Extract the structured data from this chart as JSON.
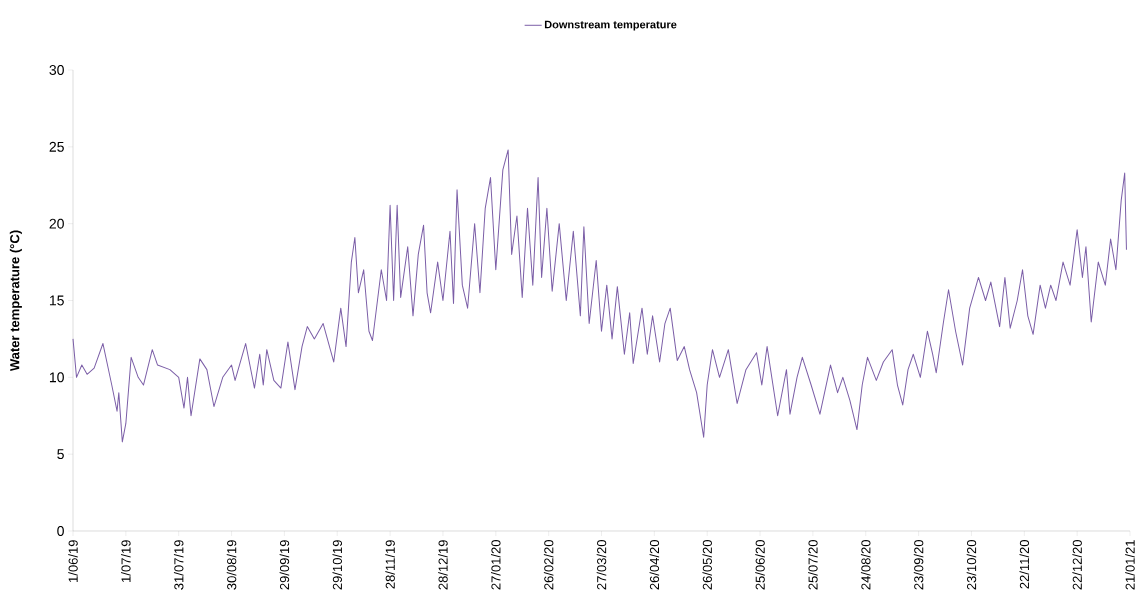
{
  "chart_data": {
    "type": "line",
    "ylabel": "Water temperature (°C)",
    "x": [
      "2019-06-01",
      "2019-06-03",
      "2019-06-06",
      "2019-06-09",
      "2019-06-13",
      "2019-06-18",
      "2019-06-23",
      "2019-06-26",
      "2019-06-27",
      "2019-06-29",
      "2019-07-01",
      "2019-07-04",
      "2019-07-08",
      "2019-07-11",
      "2019-07-16",
      "2019-07-19",
      "2019-07-26",
      "2019-07-31",
      "2019-08-03",
      "2019-08-05",
      "2019-08-07",
      "2019-08-12",
      "2019-08-16",
      "2019-08-20",
      "2019-08-25",
      "2019-08-30",
      "2019-09-01",
      "2019-09-07",
      "2019-09-12",
      "2019-09-15",
      "2019-09-17",
      "2019-09-19",
      "2019-09-23",
      "2019-09-27",
      "2019-10-01",
      "2019-10-05",
      "2019-10-09",
      "2019-10-12",
      "2019-10-16",
      "2019-10-21",
      "2019-10-27",
      "2019-10-31",
      "2019-11-03",
      "2019-11-06",
      "2019-11-08",
      "2019-11-10",
      "2019-11-13",
      "2019-11-16",
      "2019-11-18",
      "2019-11-23",
      "2019-11-26",
      "2019-11-28",
      "2019-11-30",
      "2019-12-02",
      "2019-12-04",
      "2019-12-08",
      "2019-12-11",
      "2019-12-14",
      "2019-12-17",
      "2019-12-19",
      "2019-12-21",
      "2019-12-25",
      "2019-12-28",
      "2020-01-01",
      "2020-01-03",
      "2020-01-05",
      "2020-01-08",
      "2020-01-11",
      "2020-01-15",
      "2020-01-18",
      "2020-01-21",
      "2020-01-24",
      "2020-01-27",
      "2020-01-31",
      "2020-02-03",
      "2020-02-05",
      "2020-02-08",
      "2020-02-11",
      "2020-02-14",
      "2020-02-17",
      "2020-02-20",
      "2020-02-22",
      "2020-02-25",
      "2020-02-28",
      "2020-03-03",
      "2020-03-07",
      "2020-03-11",
      "2020-03-15",
      "2020-03-17",
      "2020-03-20",
      "2020-03-24",
      "2020-03-27",
      "2020-03-30",
      "2020-04-02",
      "2020-04-05",
      "2020-04-09",
      "2020-04-12",
      "2020-04-14",
      "2020-04-19",
      "2020-04-22",
      "2020-04-25",
      "2020-04-29",
      "2020-05-02",
      "2020-05-05",
      "2020-05-09",
      "2020-05-13",
      "2020-05-16",
      "2020-05-20",
      "2020-05-24",
      "2020-05-26",
      "2020-05-29",
      "2020-06-02",
      "2020-06-07",
      "2020-06-12",
      "2020-06-17",
      "2020-06-23",
      "2020-06-26",
      "2020-06-29",
      "2020-07-05",
      "2020-07-10",
      "2020-07-12",
      "2020-07-16",
      "2020-07-19",
      "2020-07-24",
      "2020-07-29",
      "2020-08-04",
      "2020-08-08",
      "2020-08-11",
      "2020-08-15",
      "2020-08-19",
      "2020-08-22",
      "2020-08-25",
      "2020-08-30",
      "2020-09-03",
      "2020-09-08",
      "2020-09-11",
      "2020-09-14",
      "2020-09-17",
      "2020-09-20",
      "2020-09-24",
      "2020-09-28",
      "2020-10-01",
      "2020-10-03",
      "2020-10-07",
      "2020-10-10",
      "2020-10-14",
      "2020-10-18",
      "2020-10-22",
      "2020-10-27",
      "2020-10-31",
      "2020-11-03",
      "2020-11-08",
      "2020-11-11",
      "2020-11-14",
      "2020-11-18",
      "2020-11-21",
      "2020-11-24",
      "2020-11-27",
      "2020-12-01",
      "2020-12-04",
      "2020-12-07",
      "2020-12-10",
      "2020-12-14",
      "2020-12-18",
      "2020-12-22",
      "2020-12-25",
      "2020-12-27",
      "2020-12-30",
      "2021-01-03",
      "2021-01-07",
      "2021-01-10",
      "2021-01-13",
      "2021-01-16",
      "2021-01-18",
      "2021-01-19"
    ],
    "series": [
      {
        "name": "Downstream temperature",
        "color": "#7b5ea7",
        "values": [
          12.5,
          10.0,
          10.8,
          10.2,
          10.6,
          12.2,
          9.5,
          7.8,
          9.0,
          5.8,
          7.0,
          11.3,
          10.0,
          9.5,
          11.8,
          10.8,
          10.5,
          10.0,
          8.0,
          10.0,
          7.5,
          11.2,
          10.5,
          8.1,
          10.0,
          10.8,
          9.8,
          12.2,
          9.3,
          11.5,
          9.5,
          11.8,
          9.8,
          9.3,
          12.3,
          9.2,
          12.0,
          13.3,
          12.5,
          13.5,
          11.0,
          14.5,
          12.0,
          17.5,
          19.1,
          15.5,
          17.0,
          13.0,
          12.4,
          17.0,
          15.0,
          21.2,
          15.0,
          21.2,
          15.2,
          18.5,
          14.0,
          18.0,
          19.9,
          15.5,
          14.2,
          17.5,
          15.0,
          19.5,
          14.8,
          22.2,
          16.0,
          14.5,
          20.0,
          15.5,
          21.0,
          23.0,
          17.0,
          23.5,
          24.8,
          18.0,
          20.5,
          15.2,
          21.0,
          16.0,
          23.0,
          16.5,
          21.0,
          15.6,
          20.0,
          15.0,
          19.5,
          14.0,
          19.8,
          13.5,
          17.6,
          13.0,
          16.0,
          12.5,
          15.9,
          11.5,
          14.2,
          10.9,
          14.5,
          11.5,
          14.0,
          11.0,
          13.5,
          14.5,
          11.1,
          12.0,
          10.5,
          9.0,
          6.1,
          9.5,
          11.8,
          10.0,
          11.8,
          8.3,
          10.5,
          11.6,
          9.5,
          12.0,
          7.5,
          10.5,
          7.6,
          10.0,
          11.3,
          9.5,
          7.6,
          10.8,
          9.0,
          10.0,
          8.5,
          6.6,
          9.5,
          11.3,
          9.8,
          11.0,
          11.8,
          9.5,
          8.2,
          10.5,
          11.5,
          10.0,
          13.0,
          11.5,
          10.3,
          13.5,
          15.7,
          13.0,
          10.8,
          14.5,
          16.5,
          15.0,
          16.2,
          13.3,
          16.5,
          13.2,
          15.0,
          17.0,
          14.0,
          12.8,
          16.0,
          14.5,
          16.0,
          15.0,
          17.5,
          16.0,
          19.6,
          16.5,
          18.5,
          13.6,
          17.5,
          16.0,
          19.0,
          17.0,
          21.5,
          23.3,
          18.3
        ]
      }
    ],
    "xlim": [
      "2019-06-01",
      "2021-01-21"
    ],
    "xticks": [
      {
        "value": "2019-06-01",
        "label": "1/06/19"
      },
      {
        "value": "2019-07-01",
        "label": "1/07/19"
      },
      {
        "value": "2019-07-31",
        "label": "31/07/19"
      },
      {
        "value": "2019-08-30",
        "label": "30/08/19"
      },
      {
        "value": "2019-09-29",
        "label": "29/09/19"
      },
      {
        "value": "2019-10-29",
        "label": "29/10/19"
      },
      {
        "value": "2019-11-28",
        "label": "28/11/19"
      },
      {
        "value": "2019-12-28",
        "label": "28/12/19"
      },
      {
        "value": "2020-01-27",
        "label": "27/01/20"
      },
      {
        "value": "2020-02-26",
        "label": "26/02/20"
      },
      {
        "value": "2020-03-27",
        "label": "27/03/20"
      },
      {
        "value": "2020-04-26",
        "label": "26/04/20"
      },
      {
        "value": "2020-05-26",
        "label": "26/05/20"
      },
      {
        "value": "2020-06-25",
        "label": "25/06/20"
      },
      {
        "value": "2020-07-25",
        "label": "25/07/20"
      },
      {
        "value": "2020-08-24",
        "label": "24/08/20"
      },
      {
        "value": "2020-09-23",
        "label": "23/09/20"
      },
      {
        "value": "2020-10-23",
        "label": "23/10/20"
      },
      {
        "value": "2020-11-22",
        "label": "22/11/20"
      },
      {
        "value": "2020-12-22",
        "label": "22/12/20"
      },
      {
        "value": "2021-01-21",
        "label": "21/01/21"
      }
    ],
    "ylim": [
      0,
      30
    ],
    "yticks": [
      0,
      5,
      10,
      15,
      20,
      25,
      30
    ],
    "legend": "top",
    "grid": false,
    "marker": "none",
    "line_style": "solid"
  }
}
